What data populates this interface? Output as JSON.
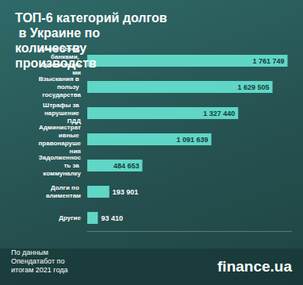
{
  "chart_data": {
    "type": "bar",
    "title": "ТОП-6 категорий долгов в Украине по количеству производств",
    "categories": [
      "Долги перед банками, организациями",
      "Взыскания в пользу государства",
      "Штрафы за нарушение ПДД",
      "Административные правонарушения",
      "Задолженность за коммуналку",
      "Долги по алиментам",
      "Другие"
    ],
    "values": [
      1761749,
      1629505,
      1327440,
      1091639,
      484653,
      193901,
      93410
    ],
    "value_labels": [
      "1 761 749",
      "1 629 505",
      "1 327 440",
      "1 091 639",
      "484 653",
      "193 901",
      "93 410"
    ],
    "color": "#5fd6c6",
    "orientation": "horizontal",
    "data_labels": true,
    "tick_labels": "y",
    "grid": false,
    "xlim": [
      0,
      1800000
    ],
    "source": "По данным Опендатабот по итогам 2021 года",
    "brand": "finance.ua"
  }
}
